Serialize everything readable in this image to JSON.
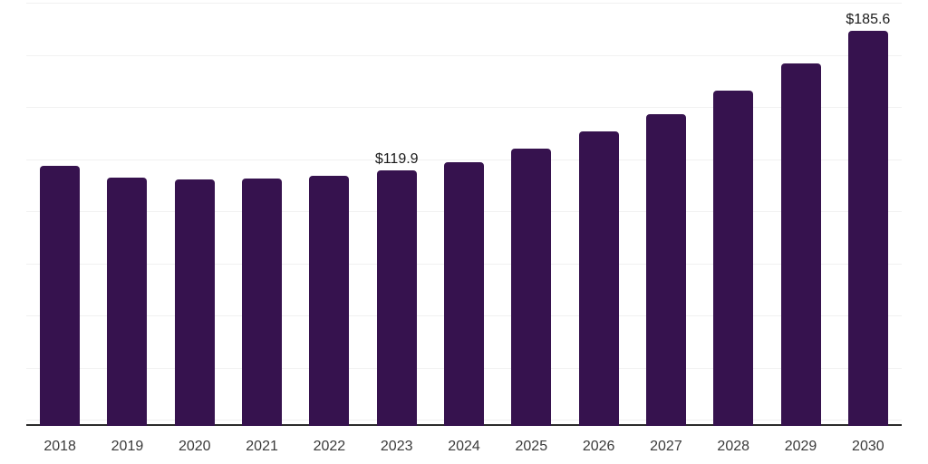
{
  "chart_data": {
    "type": "bar",
    "title": "",
    "xlabel": "",
    "ylabel": "",
    "categories": [
      "2018",
      "2019",
      "2020",
      "2021",
      "2022",
      "2023",
      "2024",
      "2025",
      "2026",
      "2027",
      "2028",
      "2029",
      "2030"
    ],
    "values": [
      122.2,
      116.6,
      115.7,
      116.2,
      117.4,
      119.9,
      124.0,
      130.4,
      138.2,
      146.3,
      157.4,
      170.2,
      185.6
    ],
    "data_labels": [
      null,
      null,
      null,
      null,
      null,
      "$119.9",
      null,
      null,
      null,
      null,
      null,
      null,
      "$185.6"
    ],
    "value_unit_prefix": "$",
    "ylim": [
      0,
      200
    ],
    "grid": "horizontal",
    "gridline_count": 9,
    "legend_position": "none",
    "colors": {
      "bar": "#36124E",
      "axis": "#2B2B2B",
      "gridline": "#F1F1F1",
      "data_label": "#1A1A1A",
      "tick_label": "#3A3A3A",
      "background": "#FFFFFF"
    }
  }
}
